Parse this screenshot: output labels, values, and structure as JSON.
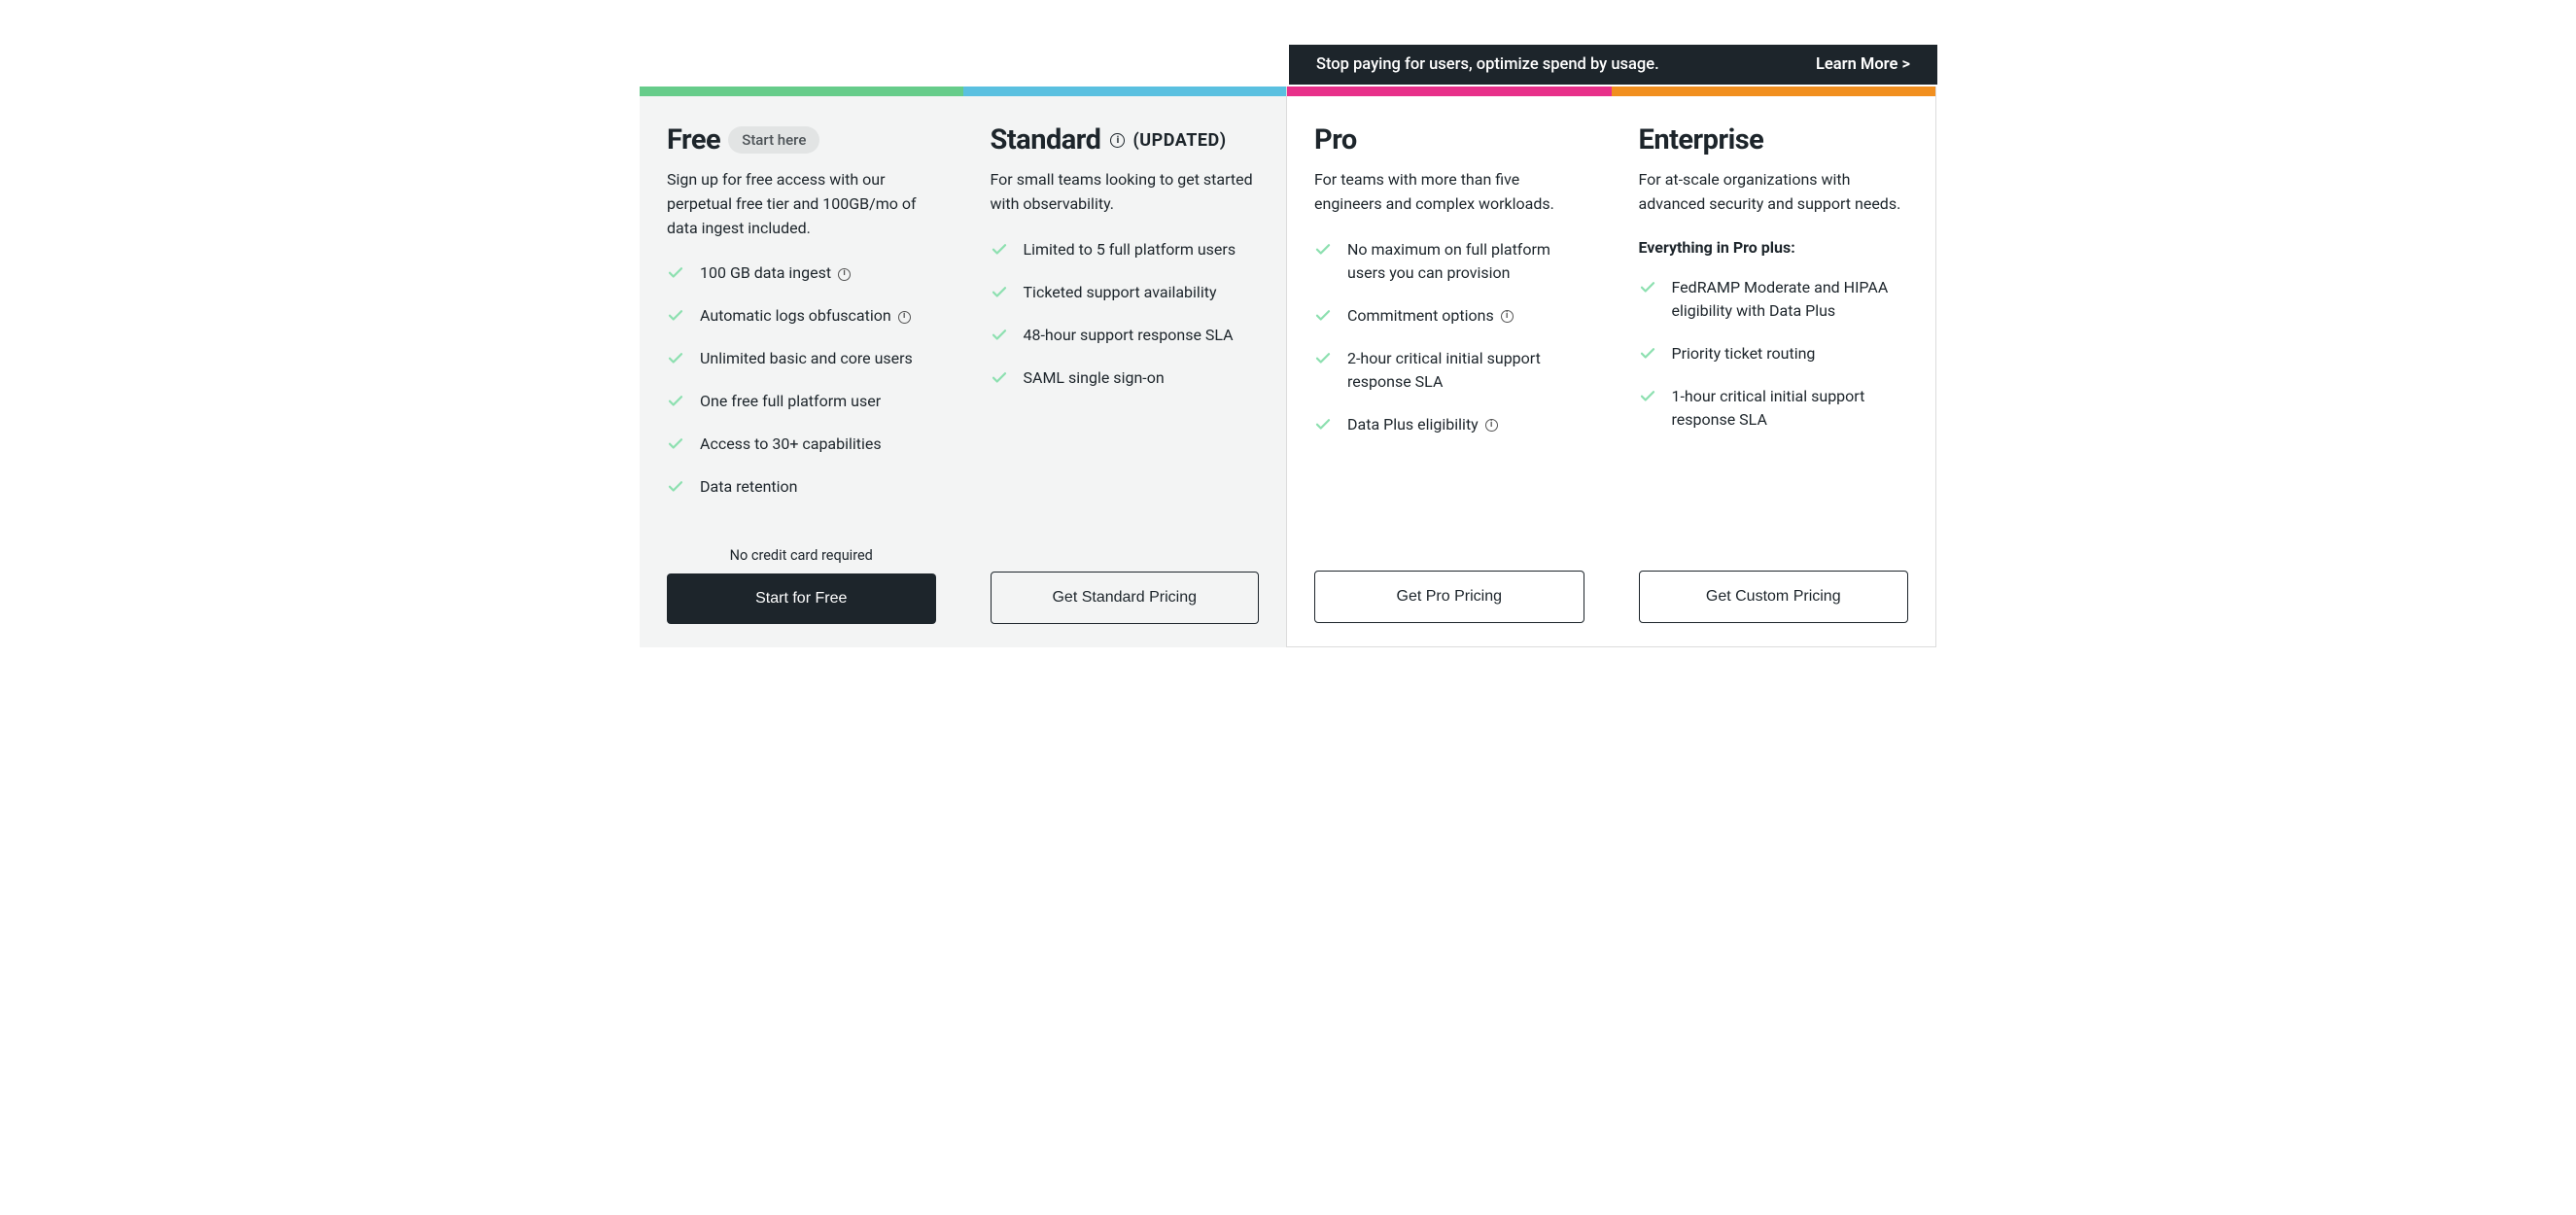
{
  "banner": {
    "text": "Stop paying for users, optimize spend by usage.",
    "link_label": "Learn More >"
  },
  "colors": {
    "stripe_free": "#66cc8a",
    "stripe_standard": "#5ac0e0",
    "stripe_pro": "#e8308a",
    "stripe_enterprise": "#f18f1f",
    "check": "#8de0b0",
    "banner_bg": "#1d252b"
  },
  "tiers": {
    "free": {
      "name": "Free",
      "pill": "Start here",
      "desc": "Sign up for free access with our perpetual free tier and 100GB/mo of data ingest included.",
      "features": [
        {
          "text": "100 GB data ingest",
          "info": true
        },
        {
          "text": "Automatic logs obfuscation",
          "info": true
        },
        {
          "text": "Unlimited basic and core users",
          "info": false
        },
        {
          "text": "One free full platform user",
          "info": false
        },
        {
          "text": "Access to 30+ capabilities",
          "info": false
        },
        {
          "text": "Data retention",
          "info": false
        }
      ],
      "no_cc": "No credit card required",
      "cta": "Start for Free"
    },
    "standard": {
      "name": "Standard",
      "updated": "(UPDATED)",
      "desc": "For small teams looking to get started with observability.",
      "features": [
        {
          "text": "Limited to 5 full platform users",
          "info": false
        },
        {
          "text": "Ticketed support availability",
          "info": false
        },
        {
          "text": "48-hour support response SLA",
          "info": false
        },
        {
          "text": "SAML single sign-on",
          "info": false
        }
      ],
      "cta": "Get Standard Pricing"
    },
    "pro": {
      "name": "Pro",
      "desc": "For teams with more than five engineers and complex workloads.",
      "features": [
        {
          "text": "No maximum on full platform users you can provision",
          "info": false
        },
        {
          "text": "Commitment options",
          "info": true
        },
        {
          "text": "2-hour critical initial support response SLA",
          "info": false
        },
        {
          "text": "Data Plus eligibility",
          "info": true
        }
      ],
      "cta": "Get Pro Pricing"
    },
    "enterprise": {
      "name": "Enterprise",
      "desc": "For at-scale organizations with advanced security and support needs.",
      "heading": "Everything in Pro plus:",
      "features": [
        {
          "text": "FedRAMP Moderate and HIPAA eligibility with Data Plus",
          "info": false
        },
        {
          "text": "Priority ticket routing",
          "info": false
        },
        {
          "text": "1-hour critical initial support response SLA",
          "info": false
        }
      ],
      "cta": "Get Custom Pricing"
    }
  }
}
